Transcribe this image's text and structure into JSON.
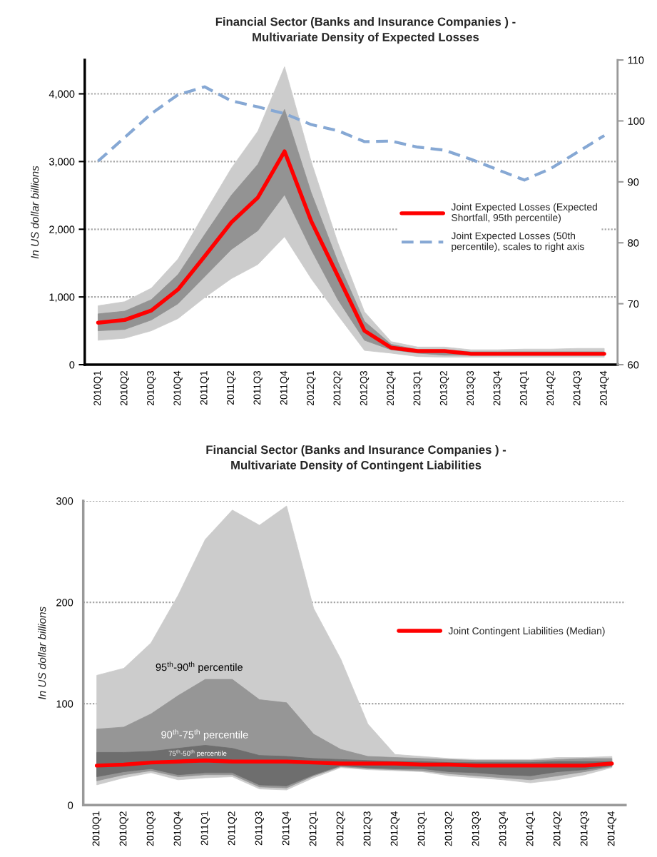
{
  "chart_data": [
    {
      "type": "line",
      "title": "Financial Sector (Banks and Insurance Companies ) -\nMultivariate Density of Expected Losses",
      "ylabel": "In US dollar billions",
      "categories": [
        "2010Q1",
        "2010Q2",
        "2010Q3",
        "2010Q4",
        "2011Q1",
        "2011Q2",
        "2011Q3",
        "2011Q4",
        "2012Q1",
        "2012Q2",
        "2012Q3",
        "2012Q4",
        "2013Q1",
        "2013Q2",
        "2013Q3",
        "2013Q4",
        "2014Q1",
        "2014Q2",
        "2014Q3",
        "2014Q4"
      ],
      "series": [
        {
          "type": "area",
          "color": "#cccccc",
          "values": [
            null,
            null,
            null,
            null,
            null,
            null,
            null,
            null,
            null,
            null,
            null,
            null,
            null,
            null,
            null,
            null,
            null,
            null,
            null,
            null
          ],
          "lower": [
            360,
            390,
            500,
            680,
            990,
            1270,
            1480,
            1890,
            1270,
            730,
            210,
            170,
            120,
            110,
            110,
            110,
            110,
            110,
            110,
            110
          ],
          "upper": [
            870,
            930,
            1130,
            1560,
            2240,
            2900,
            3450,
            4400,
            3000,
            1800,
            780,
            340,
            260,
            260,
            220,
            220,
            230,
            230,
            240,
            240
          ]
        },
        {
          "type": "area",
          "color": "#939393",
          "values": [
            null,
            null,
            null,
            null,
            null,
            null,
            null,
            null,
            null,
            null,
            null,
            null,
            null,
            null,
            null,
            null,
            null,
            null,
            null,
            null
          ],
          "lower": [
            500,
            520,
            660,
            900,
            1300,
            1700,
            1980,
            2510,
            1700,
            960,
            360,
            220,
            170,
            140,
            140,
            140,
            140,
            140,
            140,
            140
          ],
          "upper": [
            750,
            790,
            960,
            1330,
            1920,
            2500,
            2960,
            3770,
            2540,
            1520,
            640,
            300,
            220,
            220,
            190,
            190,
            190,
            190,
            190,
            190
          ]
        },
        {
          "name": "Joint Expected Losses (Expected\nShortfall, 95th percentile)",
          "color": "#ff0000",
          "line_style": "solid",
          "values": [
            620,
            660,
            800,
            1110,
            1600,
            2100,
            2470,
            3150,
            2120,
            1310,
            500,
            250,
            200,
            200,
            160,
            160,
            160,
            160,
            160,
            160
          ]
        },
        {
          "name": "Joint Expected Losses (50th\npercentile), scales to right axis",
          "color": "#86a8d4",
          "line_style": "dashed",
          "axis": "y2",
          "values": [
            93.4,
            97.3,
            101.2,
            104.3,
            105.6,
            103.3,
            102.3,
            101.2,
            99.4,
            98.4,
            96.6,
            96.7,
            95.7,
            95.2,
            93.7,
            92.0,
            90.3,
            92.2,
            94.9,
            97.6
          ]
        }
      ],
      "ylim": [
        0,
        4500
      ],
      "yticks": [
        0,
        {
          "value": 1000,
          "label": "1,000"
        },
        {
          "value": 2000,
          "label": "2,000"
        },
        {
          "value": 3000,
          "label": "3,000"
        },
        {
          "value": 4000,
          "label": "4,000"
        }
      ],
      "y2lim": [
        60,
        110
      ],
      "y2ticks": [
        60,
        70,
        80,
        90,
        100,
        110
      ],
      "grid": "y",
      "legend": "right"
    },
    {
      "type": "line",
      "title": "Financial Sector (Banks and Insurance Companies ) -\nMultivariate Density of Contingent Liabilities",
      "ylabel": "In US dollar billions",
      "categories": [
        "2010Q1",
        "2010Q2",
        "2010Q3",
        "2010Q4",
        "2011Q1",
        "2011Q2",
        "2011Q3",
        "2011Q4",
        "2012Q1",
        "2012Q2",
        "2012Q3",
        "2012Q4",
        "2013Q1",
        "2013Q2",
        "2013Q3",
        "2013Q4",
        "2014Q1",
        "2014Q2",
        "2014Q3",
        "2014Q4"
      ],
      "series": [
        {
          "type": "area",
          "color": "#cccccc",
          "values": [
            null,
            null,
            null,
            null,
            null,
            null,
            null,
            null,
            null,
            null,
            null,
            null,
            null,
            null,
            null,
            null,
            null,
            null,
            null,
            null
          ],
          "lower": [
            20,
            27,
            32,
            25,
            27,
            28,
            16,
            15,
            27,
            37,
            35,
            34,
            33,
            29,
            27,
            25,
            22,
            25,
            30,
            37
          ],
          "upper": [
            128,
            135,
            160,
            207,
            262,
            291,
            276,
            295,
            194,
            144,
            80,
            50,
            48,
            46,
            45,
            45,
            45,
            47,
            47,
            48
          ]
        },
        {
          "type": "area",
          "color": "#969696",
          "values": [
            null,
            null,
            null,
            null,
            null,
            null,
            null,
            null,
            null,
            null,
            null,
            null,
            null,
            null,
            null,
            null,
            null,
            null,
            null,
            null
          ],
          "lower": [
            24,
            30,
            34,
            28,
            30,
            30,
            18,
            17,
            29,
            38,
            36,
            35,
            34,
            31,
            29,
            27,
            25,
            29,
            33,
            38
          ],
          "upper": [
            75,
            77,
            90,
            108,
            124,
            124,
            104,
            101,
            70,
            55,
            48,
            47,
            46,
            45,
            44,
            44,
            44,
            45,
            46,
            46
          ]
        },
        {
          "type": "area",
          "color": "#6e6e6e",
          "values": [
            null,
            null,
            null,
            null,
            null,
            null,
            null,
            null,
            null,
            null,
            null,
            null,
            null,
            null,
            null,
            null,
            null,
            null,
            null,
            null
          ],
          "lower": [
            28,
            33,
            36,
            30,
            32,
            32,
            20,
            19,
            30,
            39,
            37,
            36,
            36,
            33,
            32,
            30,
            29,
            33,
            35,
            39
          ],
          "upper": [
            52,
            52,
            53,
            56,
            59,
            56,
            49,
            48,
            46,
            45,
            44,
            43,
            43,
            42,
            42,
            42,
            42,
            43,
            43,
            43
          ]
        },
        {
          "name": "Joint Contingent Liabilities (Median)",
          "color": "#ff0000",
          "line_style": "solid",
          "values": [
            39,
            40,
            42,
            43,
            44,
            43,
            43,
            43,
            42,
            41,
            41,
            41,
            40,
            40,
            39,
            39,
            39,
            39,
            39,
            41
          ]
        }
      ],
      "annotations": [
        "95$^{th}$-90$^{th}$ percentile",
        "90$^{th}$-75$^{th}$ percentile",
        "75$^{th}$-50$^{th}$ percentile"
      ],
      "ylim": [
        0,
        300
      ],
      "yticks": [
        0,
        100,
        200,
        300
      ],
      "grid": "y",
      "legend": "right"
    }
  ]
}
